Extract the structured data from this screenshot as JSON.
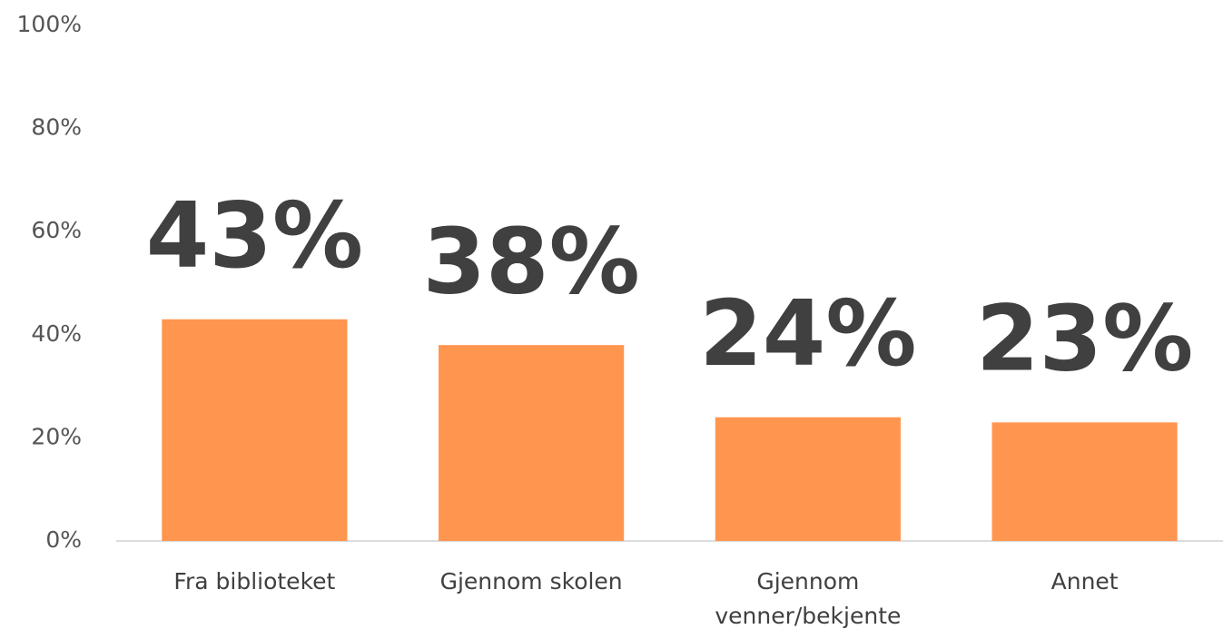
{
  "chart_data": {
    "type": "bar",
    "categories": [
      "Fra biblioteket",
      "Gjennom skolen",
      "Gjennom venner/bekjente",
      "Annet"
    ],
    "values": [
      43,
      38,
      24,
      23
    ],
    "value_labels": [
      "43%",
      "38%",
      "24%",
      "23%"
    ],
    "color": "#ff9650",
    "ylim": [
      0,
      100
    ],
    "yticks": [
      {
        "value": 0,
        "label": "0%"
      },
      {
        "value": 20,
        "label": "20%"
      },
      {
        "value": 40,
        "label": "40%"
      },
      {
        "value": 60,
        "label": "60%"
      },
      {
        "value": 80,
        "label": "80%"
      },
      {
        "value": 100,
        "label": "100%"
      }
    ],
    "grid": false
  }
}
